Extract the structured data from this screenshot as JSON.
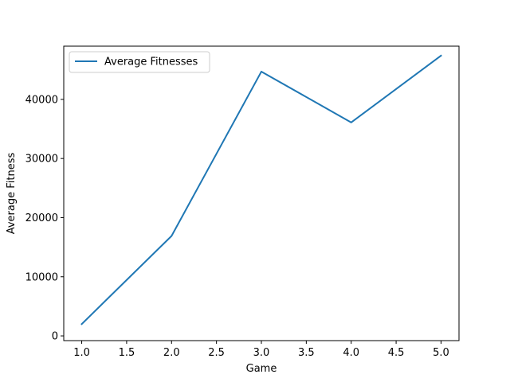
{
  "chart_data": {
    "type": "line",
    "title": "",
    "xlabel": "Game",
    "ylabel": "Average Fitness",
    "x": [
      1.0,
      2.0,
      3.0,
      4.0,
      5.0
    ],
    "series": [
      {
        "name": "Average Fitnesses",
        "values": [
          2000,
          16900,
          44700,
          36100,
          47400
        ],
        "color": "#1f77b4"
      }
    ],
    "xlim": [
      0.8,
      5.2
    ],
    "ylim": [
      -800,
      49000
    ],
    "xticks": [
      1.0,
      1.5,
      2.0,
      2.5,
      3.0,
      3.5,
      4.0,
      4.5,
      5.0
    ],
    "xtick_labels": [
      "1.0",
      "1.5",
      "2.0",
      "2.5",
      "3.0",
      "3.5",
      "4.0",
      "4.5",
      "5.0"
    ],
    "yticks": [
      0,
      10000,
      20000,
      30000,
      40000
    ],
    "ytick_labels": [
      "0",
      "10000",
      "20000",
      "30000",
      "40000"
    ],
    "grid": false,
    "legend_position": "upper-left"
  }
}
